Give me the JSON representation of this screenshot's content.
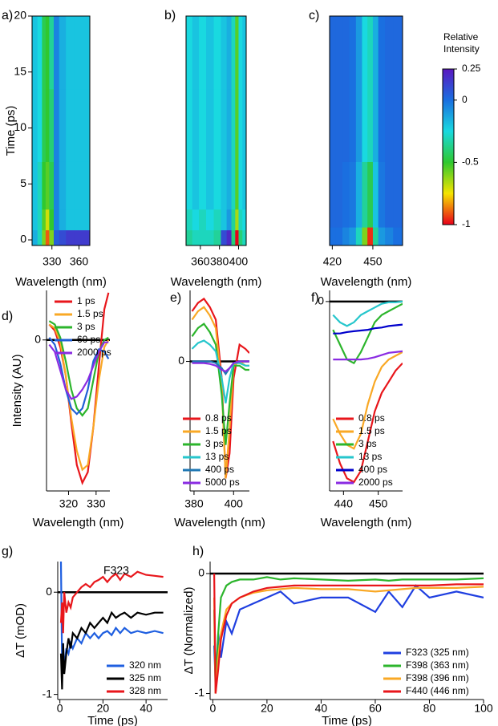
{
  "chart_data": [
    {
      "type": "heatmap",
      "panel_label": "a)",
      "x_label": "Wavelength (nm)",
      "y_label": "Time (ps)",
      "xlim": [
        308,
        372
      ],
      "xticks": [
        330,
        360
      ],
      "ylim": [
        -0.5,
        20
      ],
      "yticks": [
        0,
        5,
        10,
        15,
        20
      ],
      "x": [
        311,
        317,
        321,
        325,
        329,
        335,
        341,
        350,
        360,
        369
      ],
      "y": [
        0.3,
        1.5,
        4,
        10,
        17
      ],
      "z": [
        [
          -0.15,
          -0.3,
          -0.6,
          -0.9,
          -0.6,
          0.05,
          0.1,
          0.15,
          0.15,
          0.15
        ],
        [
          -0.2,
          -0.3,
          -0.55,
          -0.7,
          -0.5,
          -0.05,
          -0.15,
          -0.2,
          -0.2,
          -0.2
        ],
        [
          -0.2,
          -0.3,
          -0.5,
          -0.55,
          -0.45,
          -0.05,
          -0.15,
          -0.2,
          -0.2,
          -0.2
        ],
        [
          -0.2,
          -0.25,
          -0.45,
          -0.5,
          -0.4,
          -0.05,
          -0.15,
          -0.2,
          -0.2,
          -0.2
        ],
        [
          -0.2,
          -0.25,
          -0.45,
          -0.5,
          -0.35,
          -0.05,
          -0.15,
          -0.2,
          -0.2,
          -0.2
        ]
      ]
    },
    {
      "type": "heatmap",
      "panel_label": "b)",
      "x_label": "Wavelength (nm)",
      "xlim": [
        345,
        408
      ],
      "xticks": [
        360,
        380,
        400
      ],
      "ylim": [
        -0.5,
        20
      ],
      "x": [
        348,
        355,
        362,
        370,
        378,
        385,
        390,
        395,
        398,
        402,
        406
      ],
      "y": [
        0.3,
        1.5,
        4,
        10,
        17
      ],
      "z": [
        [
          -0.35,
          -0.3,
          -0.3,
          -0.3,
          -0.35,
          0.1,
          0.2,
          -0.4,
          -1,
          -0.4,
          -0.3
        ],
        [
          -0.3,
          -0.25,
          -0.3,
          -0.25,
          -0.3,
          -0.2,
          -0.1,
          -0.35,
          -0.65,
          -0.3,
          -0.25
        ],
        [
          -0.25,
          -0.2,
          -0.25,
          -0.2,
          -0.25,
          -0.2,
          -0.15,
          -0.3,
          -0.55,
          -0.25,
          -0.2
        ],
        [
          -0.25,
          -0.2,
          -0.25,
          -0.2,
          -0.25,
          -0.2,
          -0.15,
          -0.3,
          -0.55,
          -0.25,
          -0.2
        ],
        [
          -0.25,
          -0.2,
          -0.25,
          -0.2,
          -0.25,
          -0.2,
          -0.15,
          -0.3,
          -0.55,
          -0.25,
          -0.2
        ]
      ]
    },
    {
      "type": "heatmap",
      "panel_label": "c)",
      "x_label": "Wavelength (nm)",
      "xlim": [
        418,
        472
      ],
      "xticks": [
        420,
        450
      ],
      "ylim": [
        -0.5,
        20
      ],
      "x": [
        420,
        425,
        430,
        435,
        440,
        444,
        448,
        452,
        456,
        462,
        468
      ],
      "y": [
        0.3,
        2,
        12
      ],
      "z": [
        [
          0,
          0,
          -0.05,
          -0.1,
          -0.3,
          -0.6,
          -0.95,
          -0.35,
          -0.1,
          -0.05,
          0
        ],
        [
          0.02,
          0.02,
          0,
          -0.02,
          -0.15,
          -0.35,
          -0.45,
          -0.2,
          -0.02,
          0.02,
          0.02
        ],
        [
          0.02,
          0.02,
          0.02,
          0,
          -0.1,
          -0.25,
          -0.3,
          -0.15,
          0,
          0.02,
          0.02
        ]
      ],
      "colorbar": {
        "label": [
          "Relative",
          "Intensity"
        ],
        "lim": [
          -1,
          0.25
        ],
        "ticks": [
          0.25,
          0,
          -0.5,
          -1
        ],
        "colormap": [
          "#e8001a",
          "#f5e400",
          "#2fc82f",
          "#19d9e0",
          "#1a6fe0",
          "#5a18c0"
        ]
      }
    },
    {
      "type": "line",
      "panel_label": "d)",
      "x_label": "Wavelength (nm)",
      "y_label": "Intensity (AU)",
      "xlim": [
        312,
        335
      ],
      "xticks": [
        320,
        330
      ],
      "ylim": [
        -3.2,
        1.05
      ],
      "yticks": [
        0
      ],
      "zero_line": true,
      "legend": "upper left",
      "x": [
        313,
        315,
        317,
        319,
        321,
        323,
        325,
        327,
        329,
        331,
        333,
        334.5
      ],
      "series": [
        {
          "name": "1 ps",
          "color": "#e8161b",
          "values": [
            0.33,
            0.2,
            -0.15,
            -0.75,
            -1.75,
            -2.65,
            -3.03,
            -2.8,
            -1.85,
            -0.55,
            0.65,
            1.0
          ]
        },
        {
          "name": "1.5 ps",
          "color": "#f9a825",
          "values": [
            0.33,
            0.25,
            -0.05,
            -0.75,
            -1.65,
            -2.35,
            -2.75,
            -2.65,
            -1.85,
            -0.85,
            -0.15,
            0
          ]
        },
        {
          "name": "3 ps",
          "color": "#2cb52c",
          "values": [
            0.4,
            0.33,
            0.05,
            -0.45,
            -1.05,
            -1.45,
            -1.6,
            -1.45,
            -0.85,
            -0.25,
            0,
            0.05
          ]
        },
        {
          "name": "60 ps",
          "color": "#1f5fd6",
          "values": [
            0.05,
            -0.1,
            -0.5,
            -1.05,
            -1.45,
            -1.57,
            -1.45,
            -1.05,
            -0.45,
            -0.2,
            -0.25,
            -0.4
          ]
        },
        {
          "name": "2000 ps",
          "color": "#8a2be2",
          "values": [
            -0.1,
            -0.25,
            -0.65,
            -1.05,
            -1.25,
            -1.2,
            -1.05,
            -0.85,
            -0.55,
            -0.25,
            -0.05,
            -0.05
          ]
        }
      ]
    },
    {
      "type": "line",
      "panel_label": "e)",
      "x_label": "Wavelength (nm)",
      "xlim": [
        378,
        408
      ],
      "xticks": [
        380,
        400
      ],
      "ylim": [
        -1.55,
        0.85
      ],
      "yticks": [
        0
      ],
      "zero_line": true,
      "legend": "lower right",
      "x": [
        379,
        382,
        385,
        388,
        391,
        394,
        396,
        398,
        400,
        403,
        406,
        408
      ],
      "series": [
        {
          "name": "0.8 ps",
          "color": "#e8161b",
          "values": [
            0.6,
            0.7,
            0.75,
            0.65,
            0.5,
            -0.2,
            -1.4,
            -1.1,
            -0.2,
            0.2,
            0.15,
            0.1
          ]
        },
        {
          "name": "1.5 ps",
          "color": "#f9a825",
          "values": [
            0.5,
            0.6,
            0.65,
            0.55,
            0.4,
            -0.3,
            -1.4,
            -0.8,
            -0.05,
            0,
            -0.05,
            -0.05
          ]
        },
        {
          "name": "3 ps",
          "color": "#2cb52c",
          "values": [
            0.3,
            0.4,
            0.45,
            0.35,
            0.2,
            -0.4,
            -1.0,
            -0.5,
            -0.05,
            -0.05,
            -0.1,
            -0.1
          ]
        },
        {
          "name": "13 ps",
          "color": "#26c6cc",
          "values": [
            0.15,
            0.22,
            0.25,
            0.2,
            0.12,
            -0.2,
            -0.5,
            -0.2,
            -0.02,
            -0.02,
            -0.05,
            -0.05
          ]
        },
        {
          "name": "400 ps",
          "color": "#1f78b4",
          "values": [
            0,
            0,
            0,
            0,
            -0.02,
            -0.08,
            -0.15,
            -0.08,
            -0.02,
            0,
            0,
            0
          ]
        },
        {
          "name": "5000 ps",
          "color": "#8a2be2",
          "values": [
            -0.02,
            -0.02,
            -0.02,
            -0.03,
            -0.05,
            -0.1,
            -0.12,
            -0.08,
            -0.02,
            0,
            0,
            0
          ]
        }
      ]
    },
    {
      "type": "line",
      "panel_label": "f)",
      "x_label": "Wavelength (nm)",
      "xlim": [
        436,
        457
      ],
      "xticks": [
        440,
        450
      ],
      "ylim": [
        -2.55,
        0.15
      ],
      "yticks": [
        0
      ],
      "zero_line": true,
      "legend": "lower right",
      "x": [
        437,
        439,
        441,
        443,
        445,
        447,
        449,
        451,
        453,
        455,
        457
      ],
      "series": [
        {
          "name": "0.8 ps",
          "color": "#e8161b",
          "values": [
            -1.88,
            -2.18,
            -2.38,
            -2.43,
            -2.28,
            -1.88,
            -1.48,
            -1.23,
            -1.08,
            -0.93,
            -0.83
          ]
        },
        {
          "name": "1.5 ps",
          "color": "#f9a825",
          "values": [
            -1.58,
            -1.78,
            -1.93,
            -1.98,
            -1.78,
            -1.38,
            -1.08,
            -0.88,
            -0.78,
            -0.73,
            -0.68
          ]
        },
        {
          "name": "3 ps",
          "color": "#2cb52c",
          "values": [
            -0.38,
            -0.58,
            -0.78,
            -0.83,
            -0.68,
            -0.48,
            -0.28,
            -0.18,
            -0.13,
            -0.08,
            -0.03
          ]
        },
        {
          "name": "13 ps",
          "color": "#26c6cc",
          "values": [
            -0.18,
            -0.28,
            -0.33,
            -0.28,
            -0.18,
            -0.13,
            -0.08,
            -0.03,
            -0.01,
            -0.01,
            0
          ]
        },
        {
          "name": "400 ps",
          "color": "#0000cc",
          "values": [
            -0.43,
            -0.43,
            -0.41,
            -0.4,
            -0.39,
            -0.38,
            -0.36,
            -0.35,
            -0.33,
            -0.32,
            -0.31
          ]
        },
        {
          "name": "2000 ps",
          "color": "#8a2be2",
          "values": [
            -0.78,
            -0.78,
            -0.78,
            -0.78,
            -0.78,
            -0.77,
            -0.75,
            -0.72,
            -0.69,
            -0.68,
            -0.67
          ]
        }
      ]
    },
    {
      "type": "line",
      "panel_label": "g)",
      "title": "F323",
      "x_label": "Time (ps)",
      "y_label": "ΔT (mOD)",
      "xlim": [
        -1,
        50
      ],
      "xticks": [
        0,
        20,
        40
      ],
      "ylim": [
        -1.05,
        0.3
      ],
      "yticks": [
        -1,
        0
      ],
      "zero_line": true,
      "legend": "lower right",
      "x": [
        0.5,
        1,
        1.5,
        2,
        3,
        4,
        5,
        6,
        8,
        10,
        12,
        14,
        16,
        18,
        20,
        22,
        24,
        26,
        28,
        30,
        33,
        36,
        40,
        44,
        48
      ],
      "series": [
        {
          "name": "320 nm",
          "color": "#1f5fe0",
          "values": [
            0.3,
            -0.7,
            -0.5,
            -0.75,
            -0.55,
            -0.6,
            -0.5,
            -0.55,
            -0.45,
            -0.5,
            -0.4,
            -0.45,
            -0.4,
            -0.45,
            -0.4,
            -0.38,
            -0.42,
            -0.35,
            -0.4,
            -0.35,
            -0.4,
            -0.38,
            -0.4,
            -0.38,
            -0.4
          ]
        },
        {
          "name": "325 nm",
          "color": "#000000",
          "values": [
            -0.6,
            -0.95,
            -0.5,
            -0.8,
            -0.6,
            -0.45,
            -0.55,
            -0.4,
            -0.45,
            -0.35,
            -0.4,
            -0.3,
            -0.35,
            -0.3,
            -0.25,
            -0.3,
            -0.2,
            -0.25,
            -0.22,
            -0.2,
            -0.25,
            -0.2,
            -0.22,
            -0.2,
            -0.2
          ]
        },
        {
          "name": "328 nm",
          "color": "#e8161b",
          "values": [
            -0.3,
            -0.1,
            -0.4,
            0,
            -0.2,
            -0.1,
            -0.15,
            -0.05,
            0,
            0.05,
            0.08,
            0.05,
            0.1,
            0.12,
            0.15,
            0.1,
            0.15,
            0.18,
            0.12,
            0.18,
            0.15,
            0.2,
            0.17,
            0.16,
            0.15
          ]
        }
      ]
    },
    {
      "type": "line",
      "panel_label": "h)",
      "x_label": "Time (ps)",
      "y_label": "ΔT (Normalized)",
      "xlim": [
        -1,
        100
      ],
      "xticks": [
        0,
        20,
        40,
        60,
        80,
        100
      ],
      "ylim": [
        -1.05,
        0.1
      ],
      "yticks": [
        -1,
        0
      ],
      "zero_line": true,
      "legend": "lower right",
      "x": [
        0.5,
        1,
        2,
        3,
        5,
        7,
        10,
        15,
        20,
        25,
        30,
        40,
        50,
        60,
        65,
        70,
        75,
        80,
        90,
        100
      ],
      "series": [
        {
          "name": "F323 (325 nm)",
          "color": "#1f3fe0",
          "values": [
            -0.6,
            -0.9,
            -0.5,
            -0.7,
            -0.4,
            -0.5,
            -0.3,
            -0.25,
            -0.2,
            -0.15,
            -0.25,
            -0.2,
            -0.2,
            -0.32,
            -0.15,
            -0.28,
            -0.1,
            -0.2,
            -0.15,
            -0.2
          ]
        },
        {
          "name": "F398 (363 nm)",
          "color": "#2cb52c",
          "values": [
            -0.3,
            -1,
            -0.5,
            -0.2,
            -0.1,
            -0.07,
            -0.05,
            -0.05,
            -0.03,
            -0.05,
            -0.04,
            -0.05,
            -0.06,
            -0.05,
            -0.06,
            -0.05,
            -0.05,
            -0.05,
            -0.05,
            -0.04
          ]
        },
        {
          "name": "F398 (396 nm)",
          "color": "#f9a825",
          "values": [
            -0.2,
            -1,
            -0.7,
            -0.5,
            -0.3,
            -0.25,
            -0.2,
            -0.16,
            -0.14,
            -0.13,
            -0.12,
            -0.13,
            -0.13,
            -0.15,
            -0.14,
            -0.13,
            -0.12,
            -0.12,
            -0.12,
            -0.11
          ]
        },
        {
          "name": "F440 (446 nm)",
          "color": "#e8161b",
          "values": [
            0,
            -1,
            -0.8,
            -0.55,
            -0.35,
            -0.25,
            -0.2,
            -0.15,
            -0.12,
            -0.11,
            -0.1,
            -0.1,
            -0.1,
            -0.1,
            -0.1,
            -0.1,
            -0.1,
            -0.1,
            -0.09,
            -0.09
          ]
        }
      ]
    }
  ]
}
